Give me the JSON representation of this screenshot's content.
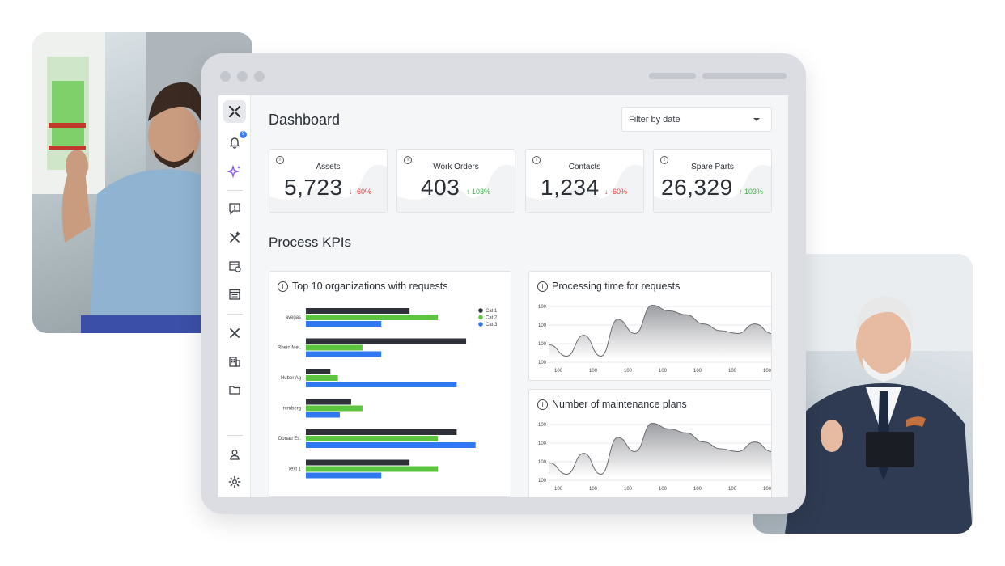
{
  "window": {
    "title": "Dashboard",
    "filter_label": "Filter by date"
  },
  "sidebar": {
    "notification_count": "9",
    "items": [
      {
        "icon": "logo-icon"
      },
      {
        "icon": "bell-icon"
      },
      {
        "icon": "sparkle-icon"
      },
      {
        "icon": "message-alert-icon"
      },
      {
        "icon": "tools-icon"
      },
      {
        "icon": "calendar-clock-icon"
      },
      {
        "icon": "calendar-list-icon"
      },
      {
        "icon": "logo-small-icon"
      },
      {
        "icon": "building-icon"
      },
      {
        "icon": "folder-icon"
      },
      {
        "icon": "user-icon"
      },
      {
        "icon": "gear-icon"
      }
    ]
  },
  "kpis": [
    {
      "label": "Assets",
      "value": "5,723",
      "delta": "↓ -60%",
      "trend": "down"
    },
    {
      "label": "Work Orders",
      "value": "403",
      "delta": "↑ 103%",
      "trend": "up"
    },
    {
      "label": "Contacts",
      "value": "1,234",
      "delta": "↓ -60%",
      "trend": "down"
    },
    {
      "label": "Spare Parts",
      "value": "26,329",
      "delta": "↑ 103%",
      "trend": "up"
    }
  ],
  "section_title": "Process KPIs",
  "chart_data": [
    {
      "type": "bar",
      "orientation": "horizontal",
      "title": "Top 10 organizations with requests",
      "categories": [
        "avegas",
        "Rhein Met.",
        "Huber Ag",
        "remberg",
        "Donau Es.",
        "Text 1"
      ],
      "series": [
        {
          "name": "Cat 1",
          "color": "#2f3138",
          "values": [
            5.5,
            8.5,
            1.3,
            2.4,
            8.0,
            5.5
          ]
        },
        {
          "name": "Cat 2",
          "color": "#5cc43e",
          "values": [
            7.0,
            3.0,
            1.7,
            3.0,
            7.0,
            7.0
          ]
        },
        {
          "name": "Cat 3",
          "color": "#2f79f0",
          "values": [
            4.0,
            4.0,
            8.0,
            1.8,
            9.0,
            4.0
          ]
        }
      ],
      "legend": "top-right",
      "grid": false
    },
    {
      "type": "area",
      "title": "Processing time for requests",
      "x_ticks": [
        "100",
        "100",
        "100",
        "100",
        "100",
        "100",
        "100"
      ],
      "y_ticks": [
        "100",
        "100",
        "100",
        "100"
      ],
      "x": [
        0,
        0.5,
        1,
        1.5,
        2,
        2.5,
        3,
        3.5,
        4,
        4.5,
        5,
        5.5,
        6,
        6.5
      ],
      "y": [
        0.25,
        0.05,
        0.42,
        0.05,
        0.7,
        0.45,
        0.95,
        0.85,
        0.78,
        0.62,
        0.5,
        0.45,
        0.62,
        0.45
      ],
      "grid": true
    },
    {
      "type": "area",
      "title": "Number of maintenance plans",
      "x_ticks": [
        "100",
        "100",
        "100",
        "100",
        "100",
        "100",
        "100"
      ],
      "y_ticks": [
        "100",
        "100",
        "100",
        "100"
      ],
      "x": [
        0,
        0.5,
        1,
        1.5,
        2,
        2.5,
        3,
        3.5,
        4,
        4.5,
        5,
        5.5,
        6,
        6.5
      ],
      "y": [
        0.25,
        0.05,
        0.42,
        0.05,
        0.7,
        0.45,
        0.95,
        0.85,
        0.78,
        0.62,
        0.5,
        0.45,
        0.62,
        0.45
      ],
      "grid": true
    }
  ]
}
